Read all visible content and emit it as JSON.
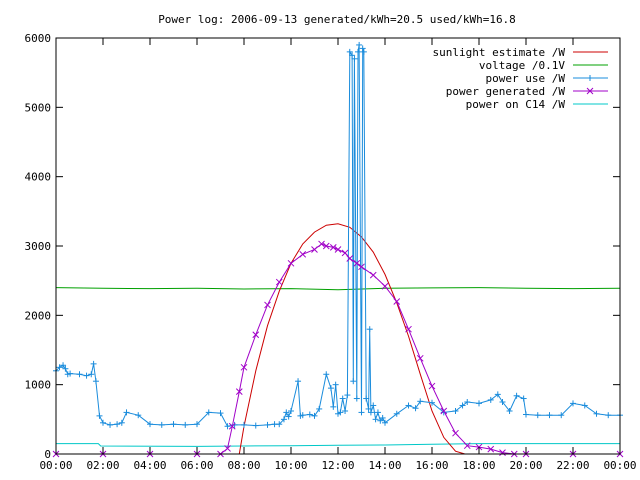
{
  "chart_data": {
    "type": "line",
    "title": "Power log: 2006-09-13 generated/kWh=20.5 used/kWh=16.8",
    "xlabel": "",
    "ylabel": "",
    "xlim": [
      0,
      24
    ],
    "ylim": [
      0,
      6000
    ],
    "grid": false,
    "legend_position": "top-right",
    "x_tick_labels": [
      "00:00",
      "02:00",
      "04:00",
      "06:00",
      "08:00",
      "10:00",
      "12:00",
      "14:00",
      "16:00",
      "18:00",
      "20:00",
      "22:00",
      "00:00"
    ],
    "y_tick_labels": [
      "0",
      "1000",
      "2000",
      "3000",
      "4000",
      "5000",
      "6000"
    ],
    "series": [
      {
        "name": "sunlight estimate /W",
        "color": "#cc0000",
        "marker": "none",
        "x": [
          7.8,
          8.0,
          8.5,
          9.0,
          9.5,
          10.0,
          10.5,
          11.0,
          11.5,
          12.0,
          12.5,
          13.0,
          13.5,
          14.0,
          14.5,
          15.0,
          15.5,
          16.0,
          16.5,
          17.0,
          17.4
        ],
        "y": [
          0,
          400,
          1200,
          1850,
          2350,
          2750,
          3030,
          3200,
          3300,
          3320,
          3270,
          3130,
          2910,
          2590,
          2180,
          1700,
          1150,
          620,
          240,
          40,
          0
        ]
      },
      {
        "name": "voltage /0.1V",
        "color": "#00a000",
        "marker": "none",
        "x": [
          0,
          2,
          4,
          6,
          8,
          10,
          12,
          14,
          16,
          18,
          20,
          22,
          24
        ],
        "y": [
          2400,
          2390,
          2385,
          2390,
          2380,
          2385,
          2370,
          2390,
          2395,
          2400,
          2390,
          2385,
          2390
        ]
      },
      {
        "name": "power use /W",
        "color": "#1a8cdc",
        "marker": "plus",
        "x": [
          0.0,
          0.15,
          0.3,
          0.4,
          0.5,
          0.6,
          1.0,
          1.3,
          1.5,
          1.6,
          1.7,
          1.85,
          2.0,
          2.3,
          2.6,
          2.8,
          3.0,
          3.5,
          4.0,
          4.5,
          5.0,
          5.5,
          6.0,
          6.5,
          7.0,
          7.3,
          7.6,
          8.0,
          8.5,
          9.0,
          9.3,
          9.5,
          9.7,
          9.8,
          9.9,
          10.0,
          10.3,
          10.4,
          10.5,
          10.8,
          11.0,
          11.2,
          11.5,
          11.7,
          11.8,
          11.9,
          12.0,
          12.1,
          12.2,
          12.3,
          12.4,
          12.5,
          12.6,
          12.65,
          12.7,
          12.8,
          12.85,
          12.9,
          13.0,
          13.05,
          13.1,
          13.2,
          13.3,
          13.35,
          13.4,
          13.5,
          13.6,
          13.7,
          13.8,
          13.9,
          14.0,
          14.5,
          15.0,
          15.3,
          15.5,
          16.0,
          16.5,
          17.0,
          17.3,
          17.5,
          18.0,
          18.5,
          18.8,
          19.0,
          19.3,
          19.6,
          19.9,
          20.0,
          20.5,
          21.0,
          21.5,
          22.0,
          22.5,
          23.0,
          23.5,
          24.0
        ],
        "y": [
          1200,
          1250,
          1280,
          1230,
          1150,
          1160,
          1150,
          1130,
          1150,
          1300,
          1050,
          550,
          450,
          420,
          430,
          450,
          600,
          560,
          430,
          420,
          430,
          420,
          430,
          600,
          590,
          400,
          420,
          420,
          410,
          420,
          430,
          430,
          500,
          600,
          540,
          620,
          1050,
          550,
          560,
          570,
          550,
          650,
          1150,
          950,
          680,
          1000,
          580,
          600,
          800,
          620,
          850,
          5800,
          5750,
          1050,
          5700,
          800,
          5800,
          5900,
          600,
          5850,
          5800,
          800,
          650,
          1800,
          600,
          700,
          500,
          600,
          480,
          520,
          450,
          580,
          700,
          660,
          760,
          740,
          600,
          620,
          700,
          750,
          730,
          780,
          860,
          750,
          620,
          840,
          800,
          570,
          560,
          560,
          560,
          730,
          700,
          580,
          560,
          560
        ]
      },
      {
        "name": "power generated /W",
        "color": "#a000c8",
        "marker": "cross",
        "x": [
          0,
          2,
          4,
          6,
          7.0,
          7.3,
          7.5,
          7.8,
          8.0,
          8.5,
          9.0,
          9.5,
          10.0,
          10.5,
          11.0,
          11.3,
          11.5,
          11.8,
          12.0,
          12.3,
          12.5,
          12.8,
          13.0,
          13.5,
          14.0,
          14.5,
          15.0,
          15.5,
          16.0,
          16.5,
          17.0,
          17.5,
          18.0,
          18.5,
          19.0,
          19.5,
          20,
          22,
          24
        ],
        "y": [
          0,
          0,
          0,
          0,
          0,
          80,
          400,
          900,
          1250,
          1720,
          2150,
          2480,
          2750,
          2880,
          2950,
          3030,
          3000,
          2980,
          2950,
          2900,
          2820,
          2750,
          2700,
          2580,
          2420,
          2200,
          1800,
          1380,
          980,
          620,
          300,
          120,
          100,
          70,
          20,
          0,
          0,
          0,
          0
        ]
      },
      {
        "name": "power on C14 /W",
        "color": "#00c8c8",
        "marker": "none",
        "x": [
          0,
          1.8,
          1.9,
          6,
          8,
          10,
          12,
          14,
          16,
          18,
          20,
          22,
          24
        ],
        "y": [
          150,
          150,
          115,
          110,
          115,
          120,
          125,
          130,
          140,
          150,
          150,
          150,
          150
        ]
      }
    ]
  }
}
